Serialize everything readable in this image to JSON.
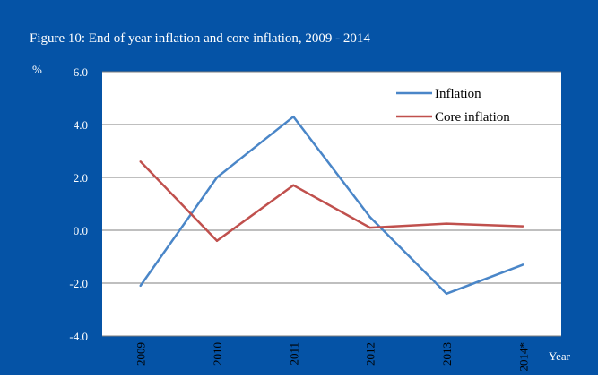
{
  "colors": {
    "background": "#0553a6",
    "plot_area": "#ffffff",
    "text": "#ffffff",
    "axis_text": "#000000",
    "grid": "#7f7f7f"
  },
  "chart_data": {
    "type": "line",
    "title": "Figure 10: End of year inflation and core inflation, 2009 - 2014",
    "xlabel": "Year",
    "ylabel": "%",
    "categories": [
      "2009",
      "2010",
      "2011",
      "2012",
      "2013",
      "2014*"
    ],
    "yticks": [
      "6.0",
      "4.0",
      "2.0",
      "0.0",
      "-2.0",
      "-4.0"
    ],
    "ylim": [
      -4,
      6
    ],
    "grid": true,
    "legend_position": "top-right",
    "series": [
      {
        "name": "Inflation",
        "color": "#4a86c8",
        "values": [
          -2.1,
          2.0,
          4.3,
          0.5,
          -2.4,
          -1.3
        ]
      },
      {
        "name": "Core inflation",
        "color": "#c0504d",
        "values": [
          2.6,
          -0.4,
          1.7,
          0.1,
          0.25,
          0.15
        ]
      }
    ]
  }
}
